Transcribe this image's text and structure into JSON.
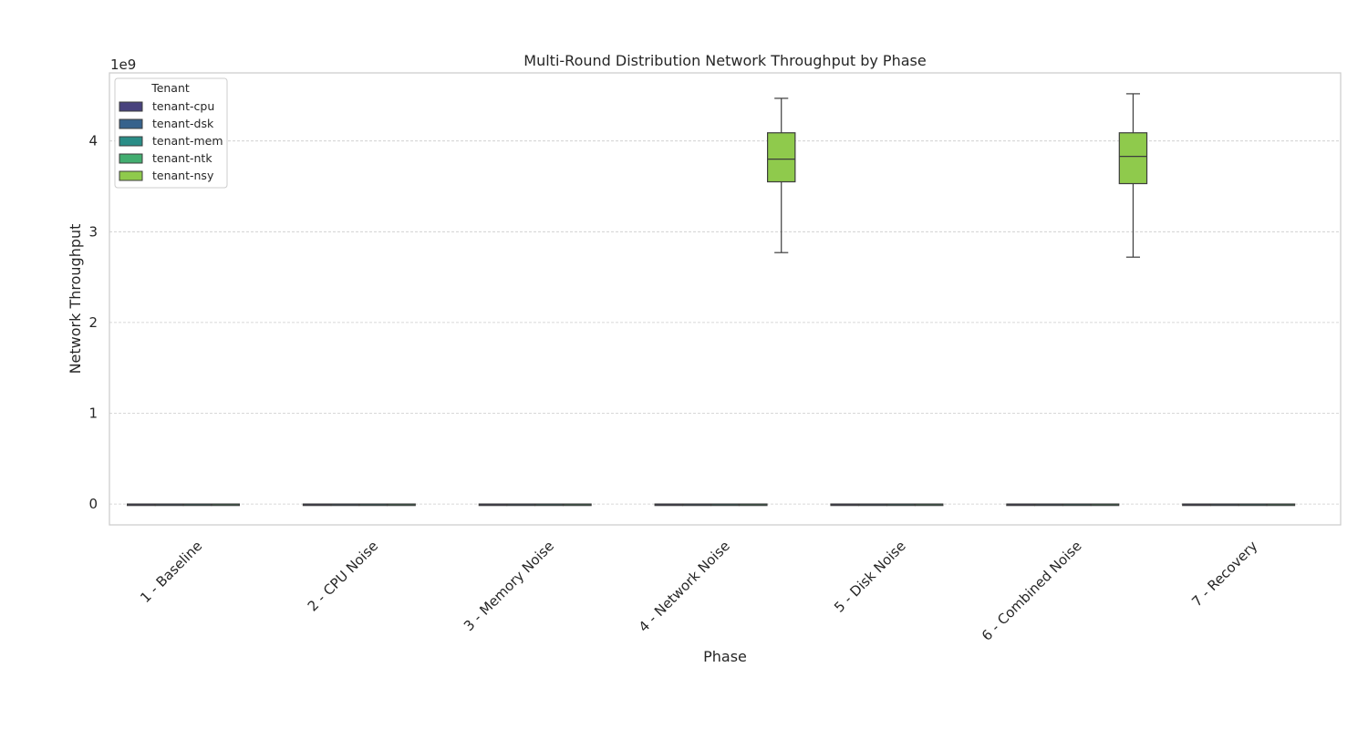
{
  "chart_data": {
    "type": "box",
    "title": "Multi-Round Distribution Network Throughput by Phase",
    "xlabel": "Phase",
    "ylabel": "Network Throughput",
    "y_offset_label": "1e9",
    "ylim": [
      -0.23,
      4.75
    ],
    "yticks": [
      0,
      1,
      2,
      3,
      4
    ],
    "grid": true,
    "legend": {
      "title": "Tenant",
      "placement": "top-left"
    },
    "categories": [
      "1 - Baseline",
      "2 - CPU Noise",
      "3 - Memory Noise",
      "4 - Network Noise",
      "5 - Disk Noise",
      "6 - Combined Noise",
      "7 - Recovery"
    ],
    "series": [
      {
        "name": "tenant-cpu",
        "color": "#48427d",
        "boxes": [
          [
            0,
            0,
            0,
            0,
            0
          ],
          [
            0,
            0,
            0,
            0,
            0
          ],
          [
            0,
            0,
            0,
            0,
            0
          ],
          [
            0,
            0,
            0,
            0,
            0
          ],
          [
            0,
            0,
            0,
            0,
            0
          ],
          [
            0,
            0,
            0,
            0,
            0
          ],
          [
            0,
            0,
            0,
            0,
            0
          ]
        ]
      },
      {
        "name": "tenant-dsk",
        "color": "#36628c",
        "boxes": [
          [
            0,
            0,
            0,
            0,
            0
          ],
          [
            0,
            0,
            0,
            0,
            0
          ],
          [
            0,
            0,
            0,
            0,
            0
          ],
          [
            0,
            0,
            0,
            0,
            0
          ],
          [
            0,
            0,
            0,
            0,
            0
          ],
          [
            0,
            0,
            0,
            0,
            0
          ],
          [
            0,
            0,
            0,
            0,
            0
          ]
        ]
      },
      {
        "name": "tenant-mem",
        "color": "#2a8d87",
        "boxes": [
          [
            0,
            0,
            0,
            0,
            0
          ],
          [
            0,
            0,
            0,
            0,
            0
          ],
          [
            0,
            0,
            0,
            0,
            0
          ],
          [
            0,
            0,
            0,
            0,
            0
          ],
          [
            0,
            0,
            0,
            0,
            0
          ],
          [
            0,
            0,
            0,
            0,
            0
          ],
          [
            0,
            0,
            0,
            0,
            0
          ]
        ]
      },
      {
        "name": "tenant-ntk",
        "color": "#43ad70",
        "boxes": [
          [
            0,
            0,
            0,
            0,
            0
          ],
          [
            0,
            0,
            0,
            0,
            0
          ],
          [
            0,
            0,
            0,
            0,
            0
          ],
          [
            0,
            0,
            0,
            0,
            0
          ],
          [
            0,
            0,
            0,
            0,
            0
          ],
          [
            0,
            0,
            0,
            0,
            0
          ],
          [
            0,
            0,
            0,
            0,
            0
          ]
        ]
      },
      {
        "name": "tenant-nsy",
        "color": "#8fca4c",
        "boxes": [
          null,
          null,
          null,
          [
            2.77,
            3.55,
            3.8,
            4.09,
            4.47
          ],
          null,
          [
            2.72,
            3.53,
            3.83,
            4.09,
            4.52
          ],
          null
        ]
      }
    ]
  }
}
